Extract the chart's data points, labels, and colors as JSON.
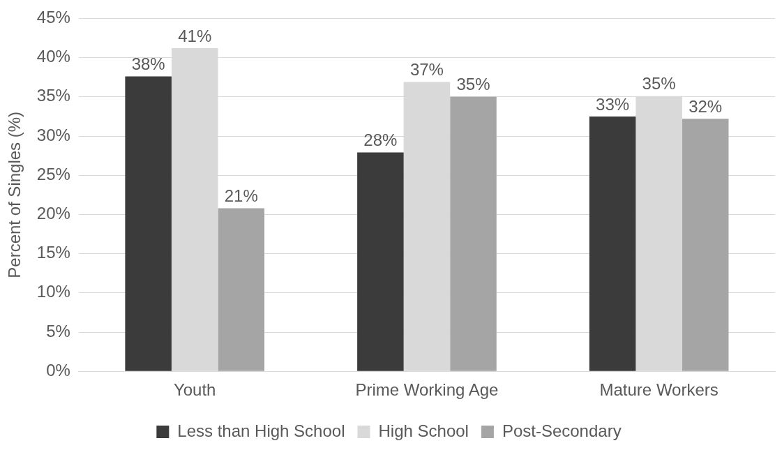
{
  "chart_data": {
    "type": "bar",
    "ylabel": "Percent of Singles (%)",
    "categories": [
      "Youth",
      "Prime Working Age",
      "Mature Workers"
    ],
    "series": [
      {
        "name": "Less than High School",
        "color": "#3b3b3b",
        "values": [
          37.6,
          27.9,
          32.5
        ],
        "value_labels": [
          "38%",
          "28%",
          "33%"
        ]
      },
      {
        "name": "High School",
        "color": "#d9d9d9",
        "values": [
          41.2,
          36.9,
          35.1
        ],
        "value_labels": [
          "41%",
          "37%",
          "35%"
        ]
      },
      {
        "name": "Post-Secondary",
        "color": "#a5a5a5",
        "values": [
          20.8,
          35.0,
          32.2
        ],
        "value_labels": [
          "21%",
          "35%",
          "32%"
        ]
      }
    ],
    "ylim": [
      0,
      45
    ],
    "yticks": [
      {
        "value": 0,
        "label": "0%"
      },
      {
        "value": 5,
        "label": "5%"
      },
      {
        "value": 10,
        "label": "10%"
      },
      {
        "value": 15,
        "label": "15%"
      },
      {
        "value": 20,
        "label": "20%"
      },
      {
        "value": 25,
        "label": "25%"
      },
      {
        "value": 30,
        "label": "30%"
      },
      {
        "value": 35,
        "label": "35%"
      },
      {
        "value": 40,
        "label": "40%"
      },
      {
        "value": 45,
        "label": "45%"
      }
    ],
    "grid": "y",
    "legend": "bottom"
  }
}
